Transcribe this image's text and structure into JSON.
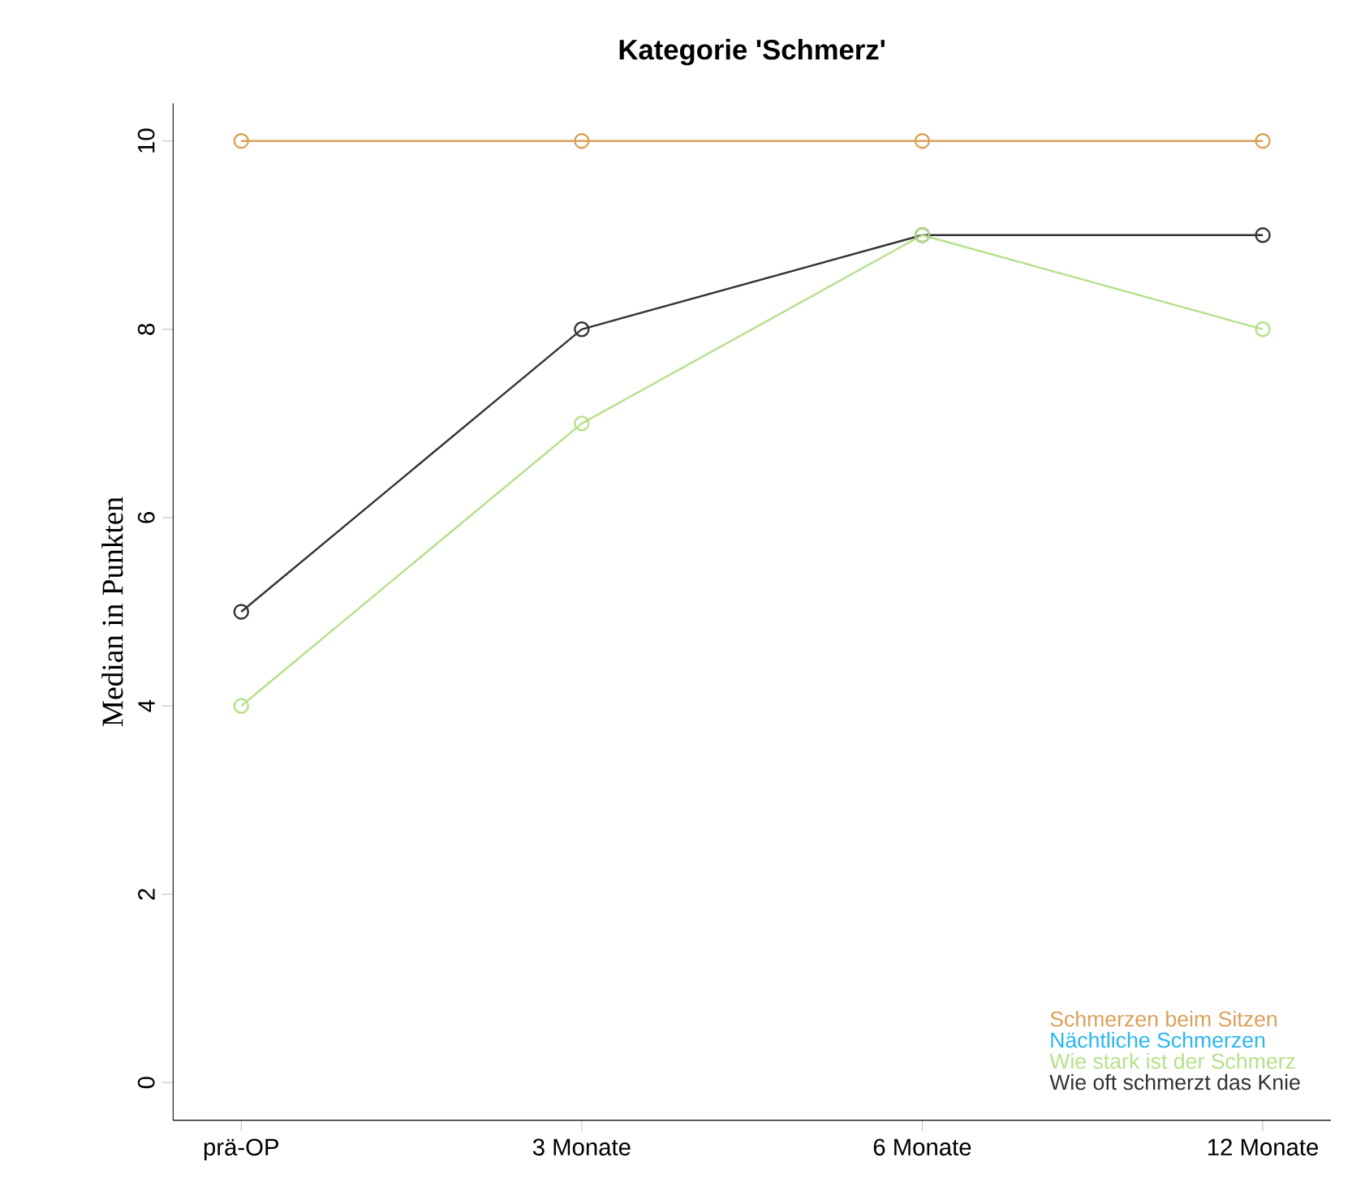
{
  "chart_data": {
    "type": "line",
    "title": "Kategorie 'Schmerz'",
    "ylabel": "Median in Punkten",
    "categories": [
      "prä-OP",
      "3 Monate",
      "6 Monate",
      "12 Monate"
    ],
    "series": [
      {
        "name": "Schmerzen beim Sitzen",
        "color": "#dba05a",
        "values": [
          10,
          10,
          10,
          10
        ]
      },
      {
        "name": "Nächtliche Schmerzen",
        "color": "#29b6f0",
        "values": [
          null,
          null,
          null,
          null
        ]
      },
      {
        "name": "Wie stark ist der Schmerz",
        "color": "#b5e08a",
        "values": [
          4,
          7,
          9,
          8
        ]
      },
      {
        "name": "Wie oft schmerzt das Knie",
        "color": "#333333",
        "values": [
          5,
          8,
          9,
          9
        ]
      }
    ],
    "ylim": [
      -0.4,
      10.4
    ],
    "yticks": [
      0,
      2,
      4,
      6,
      8,
      10
    ],
    "grid": false,
    "legend": "bottom right",
    "marker": "circle",
    "line_style": "solid"
  }
}
